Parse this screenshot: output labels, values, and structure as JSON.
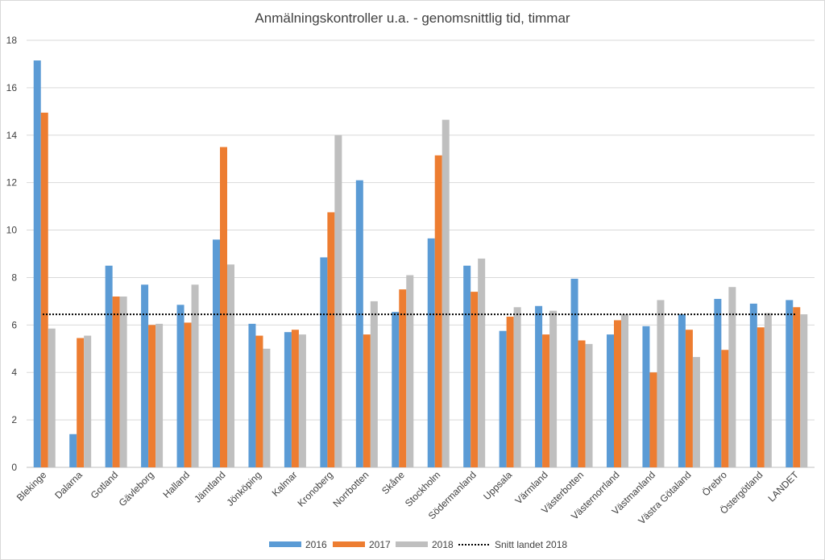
{
  "chart_data": {
    "type": "bar",
    "title": "Anmälningskontroller u.a. - genomsnittlig tid, timmar",
    "xlabel": "",
    "ylabel": "",
    "ylim": [
      0,
      18
    ],
    "yticks": [
      0,
      2,
      4,
      6,
      8,
      10,
      12,
      14,
      16,
      18
    ],
    "grid": true,
    "legend_position": "bottom",
    "categories": [
      "Blekinge",
      "Dalarna",
      "Gotland",
      "Gävleborg",
      "Halland",
      "Jämtland",
      "Jönköping",
      "Kalmar",
      "Kronoberg",
      "Norrbotten",
      "Skåne",
      "Stockholm",
      "Södermanland",
      "Uppsala",
      "Värmland",
      "Västerbotten",
      "Västernorrland",
      "Västmanland",
      "Västra Götaland",
      "Örebro",
      "Östergötland",
      "LANDET"
    ],
    "series": [
      {
        "name": "2016",
        "color": "#5b9bd5",
        "values": [
          17.15,
          1.4,
          8.5,
          7.7,
          6.85,
          9.6,
          6.05,
          5.7,
          8.85,
          12.1,
          6.55,
          9.65,
          8.5,
          5.75,
          6.8,
          7.95,
          5.6,
          5.95,
          6.45,
          7.1,
          6.9,
          7.05
        ]
      },
      {
        "name": "2017",
        "color": "#ed7d31",
        "values": [
          14.95,
          5.45,
          7.2,
          6.0,
          6.1,
          13.5,
          5.55,
          5.8,
          10.75,
          5.6,
          7.5,
          13.15,
          7.4,
          6.35,
          5.6,
          5.35,
          6.2,
          4.0,
          5.8,
          4.95,
          5.9,
          6.75
        ]
      },
      {
        "name": "2018",
        "color": "#bfbfbf",
        "values": [
          5.85,
          5.55,
          7.2,
          6.05,
          7.7,
          8.55,
          5.0,
          5.6,
          14.0,
          7.0,
          8.1,
          14.65,
          8.8,
          6.75,
          6.6,
          5.2,
          6.45,
          7.05,
          4.65,
          7.6,
          6.5,
          6.45
        ]
      }
    ],
    "reference_line": {
      "name": "Snitt landet 2018",
      "value": 6.45,
      "color": "#000000",
      "style": "dotted"
    }
  }
}
